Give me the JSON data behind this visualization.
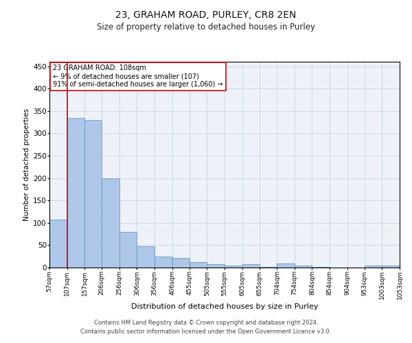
{
  "title": "23, GRAHAM ROAD, PURLEY, CR8 2EN",
  "subtitle": "Size of property relative to detached houses in Purley",
  "xlabel": "Distribution of detached houses by size in Purley",
  "ylabel": "Number of detached properties",
  "footer_line1": "Contains HM Land Registry data © Crown copyright and database right 2024.",
  "footer_line2": "Contains public sector information licensed under the Open Government Licence v3.0.",
  "annotation_line1": "23 GRAHAM ROAD: 108sqm",
  "annotation_line2": "← 9% of detached houses are smaller (107)",
  "annotation_line3": "91% of semi-detached houses are larger (1,060) →",
  "property_size": 108,
  "bar_left_edges": [
    57,
    107,
    157,
    206,
    256,
    306,
    356,
    406,
    455,
    505,
    555,
    605,
    655,
    704,
    754,
    804,
    854,
    904,
    953,
    1003
  ],
  "bar_heights": [
    107,
    335,
    330,
    200,
    80,
    47,
    25,
    22,
    12,
    8,
    5,
    8,
    2,
    9,
    5,
    1,
    0,
    0,
    5,
    4
  ],
  "bar_widths": [
    50,
    50,
    49,
    50,
    50,
    50,
    50,
    49,
    50,
    50,
    50,
    50,
    49,
    50,
    50,
    50,
    50,
    49,
    50,
    50
  ],
  "tick_labels": [
    "57sqm",
    "107sqm",
    "157sqm",
    "206sqm",
    "256sqm",
    "306sqm",
    "356sqm",
    "406sqm",
    "455sqm",
    "505sqm",
    "555sqm",
    "605sqm",
    "655sqm",
    "704sqm",
    "754sqm",
    "804sqm",
    "854sqm",
    "904sqm",
    "953sqm",
    "1003sqm",
    "1053sqm"
  ],
  "bar_color": "#aec6e8",
  "bar_edge_color": "#5b8db8",
  "vline_x": 108,
  "vline_color": "#cc0000",
  "grid_color": "#c8d8ea",
  "background_color": "#eef2f8",
  "ylim": [
    0,
    460
  ],
  "yticks": [
    0,
    50,
    100,
    150,
    200,
    250,
    300,
    350,
    400,
    450
  ],
  "title_fontsize": 10,
  "subtitle_fontsize": 8.5,
  "ylabel_fontsize": 7.5,
  "xlabel_fontsize": 8,
  "annotation_fontsize": 7,
  "footer_fontsize": 6
}
